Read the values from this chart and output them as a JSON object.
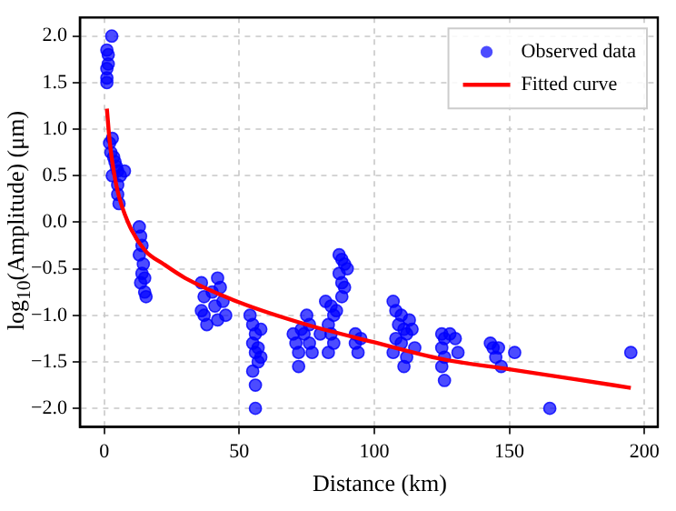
{
  "chart_data": {
    "type": "scatter",
    "xlabel": "Distance (km)",
    "ylabel": "log$_{10}$(Amplitude) (μm)",
    "xlim": [
      -9,
      205
    ],
    "xticks": [
      0,
      50,
      100,
      150,
      200
    ],
    "ylim": [
      -2.2,
      2.2
    ],
    "yticks": [
      {
        "value": -2,
        "label": "−2.0"
      },
      {
        "value": -1.5,
        "label": "−1.5"
      },
      {
        "value": -1,
        "label": "−1.0"
      },
      {
        "value": -0.5,
        "label": "−0.5"
      },
      {
        "value": 0,
        "label": "0.0"
      },
      {
        "value": 0.5,
        "label": "0.5"
      },
      {
        "value": 1,
        "label": "1.0"
      },
      {
        "value": 1.5,
        "label": "1.5"
      },
      {
        "value": 2,
        "label": "2.0"
      }
    ],
    "grid": true,
    "legend": "top right",
    "series": [
      {
        "name": "Observed data",
        "marker": "circle",
        "color": "#0000ff",
        "x": [
          1,
          1,
          1,
          1.5,
          1.5,
          1,
          2.8,
          2,
          3,
          2.5,
          3.5,
          4,
          4.5,
          5,
          6,
          7.5,
          5,
          5,
          5.5,
          3,
          13,
          13.5,
          14,
          13,
          14.5,
          14,
          15,
          13.5,
          15,
          15.5,
          36,
          37,
          36,
          38,
          40,
          41,
          42,
          43,
          44,
          45,
          42,
          37,
          54,
          55,
          56,
          55,
          57,
          56,
          58,
          57,
          55,
          56,
          56,
          58,
          70,
          71,
          72,
          72,
          74,
          75,
          76,
          76,
          77,
          73,
          87,
          88,
          89,
          90,
          87,
          88,
          89,
          82,
          84,
          85,
          83,
          84,
          85,
          83,
          86,
          88,
          80,
          93,
          93,
          94,
          95,
          107,
          108,
          110,
          109,
          111,
          112,
          108,
          113,
          114,
          110,
          115,
          112,
          107,
          111,
          125,
          126,
          128,
          130,
          125,
          126,
          125,
          131,
          126,
          143,
          144,
          146,
          145,
          147,
          152,
          165,
          195
        ],
        "values": [
          1.5,
          1.55,
          1.65,
          1.7,
          1.8,
          1.85,
          2.0,
          0.85,
          0.9,
          0.75,
          0.7,
          0.65,
          0.6,
          0.55,
          0.5,
          0.55,
          0.4,
          0.3,
          0.2,
          0.5,
          -0.05,
          -0.15,
          -0.25,
          -0.35,
          -0.45,
          -0.55,
          -0.6,
          -0.65,
          -0.75,
          -0.8,
          -0.65,
          -0.8,
          -0.95,
          -1.1,
          -0.75,
          -0.9,
          -0.6,
          -0.7,
          -0.85,
          -1.0,
          -1.05,
          -1.0,
          -1.0,
          -1.1,
          -1.2,
          -1.3,
          -1.35,
          -1.4,
          -1.15,
          -1.5,
          -1.6,
          -1.75,
          -2.0,
          -1.45,
          -1.2,
          -1.3,
          -1.4,
          -1.55,
          -1.2,
          -1.0,
          -1.1,
          -1.3,
          -1.4,
          -1.15,
          -0.35,
          -0.4,
          -0.45,
          -0.5,
          -0.55,
          -0.65,
          -0.7,
          -0.85,
          -0.9,
          -1.0,
          -1.1,
          -1.2,
          -1.3,
          -1.4,
          -0.95,
          -0.8,
          -1.2,
          -1.2,
          -1.3,
          -1.4,
          -1.25,
          -0.85,
          -0.95,
          -1.0,
          -1.1,
          -1.15,
          -1.2,
          -1.25,
          -1.05,
          -1.15,
          -1.3,
          -1.35,
          -1.45,
          -1.4,
          -1.55,
          -1.2,
          -1.25,
          -1.2,
          -1.25,
          -1.35,
          -1.45,
          -1.55,
          -1.4,
          -1.7,
          -1.3,
          -1.35,
          -1.35,
          -1.45,
          -1.55,
          -1.4,
          -2.0,
          -1.4
        ]
      },
      {
        "name": "Fitted curve",
        "type": "line",
        "marker": "none",
        "line_style": "solid",
        "color": "#ff0000",
        "x": [
          1,
          2,
          3,
          5,
          8.8,
          15,
          22,
          30,
          50,
          75,
          100,
          125,
          150,
          175,
          195
        ],
        "values": [
          1.22,
          0.88,
          0.65,
          0.33,
          0,
          -0.3,
          -0.45,
          -0.6,
          -0.86,
          -1.1,
          -1.29,
          -1.47,
          -1.58,
          -1.69,
          -1.78
        ]
      }
    ]
  }
}
